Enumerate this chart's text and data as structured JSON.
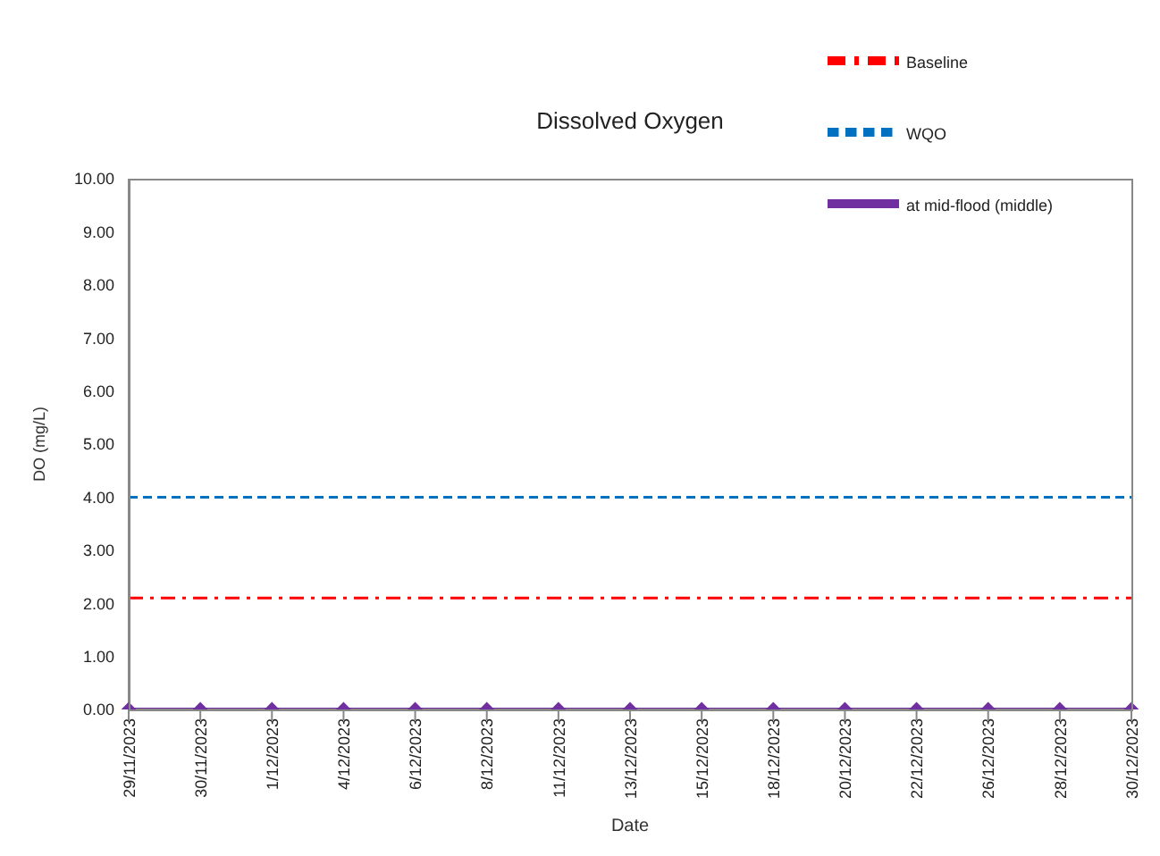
{
  "chart_data": {
    "type": "line",
    "title": "Dissolved Oxygen",
    "xlabel": "Date",
    "ylabel": "DO (mg/L)",
    "categories": [
      "29/11/2023",
      "30/11/2023",
      "1/12/2023",
      "4/12/2023",
      "6/12/2023",
      "8/12/2023",
      "11/12/2023",
      "13/12/2023",
      "15/12/2023",
      "18/12/2023",
      "20/12/2023",
      "22/12/2023",
      "26/12/2023",
      "28/12/2023",
      "30/12/2023"
    ],
    "series": [
      {
        "name": "at mid-flood (middle)",
        "color": "#7030a0",
        "marker": "diamond",
        "line_style": "solid",
        "values": [
          0,
          0,
          0,
          0,
          0,
          0,
          0,
          0,
          0,
          0,
          0,
          0,
          0,
          0,
          0
        ]
      },
      {
        "name": "Baseline",
        "color": "#ff0000",
        "marker": "none",
        "line_style": "dashdot",
        "values": [
          2.1,
          2.1,
          2.1,
          2.1,
          2.1,
          2.1,
          2.1,
          2.1,
          2.1,
          2.1,
          2.1,
          2.1,
          2.1,
          2.1,
          2.1
        ]
      },
      {
        "name": "WQO",
        "color": "#0070c0",
        "marker": "none",
        "line_style": "dashed",
        "values": [
          4,
          4,
          4,
          4,
          4,
          4,
          4,
          4,
          4,
          4,
          4,
          4,
          4,
          4,
          4
        ]
      }
    ],
    "ylim": [
      0,
      10
    ],
    "yticks": [
      {
        "value": 0,
        "label": "0.00"
      },
      {
        "value": 1,
        "label": "1.00"
      },
      {
        "value": 2,
        "label": "2.00"
      },
      {
        "value": 3,
        "label": "3.00"
      },
      {
        "value": 4,
        "label": "4.00"
      },
      {
        "value": 5,
        "label": "5.00"
      },
      {
        "value": 6,
        "label": "6.00"
      },
      {
        "value": 7,
        "label": "7.00"
      },
      {
        "value": 8,
        "label": "8.00"
      },
      {
        "value": 9,
        "label": "9.00"
      },
      {
        "value": 10,
        "label": "10.00"
      }
    ],
    "grid": false,
    "legend": "top right"
  }
}
